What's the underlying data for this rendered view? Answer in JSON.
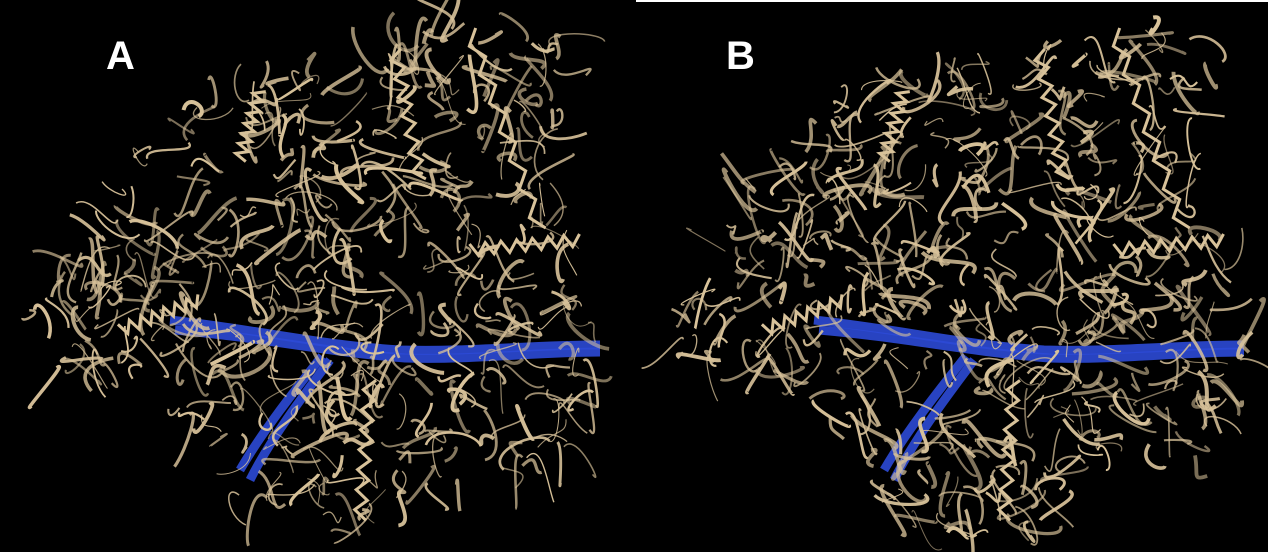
{
  "panels": [
    {
      "label": "A"
    },
    {
      "label": "B"
    }
  ],
  "colors": {
    "background": "#000000",
    "protein": "#d8c29a",
    "dna": "#2c4ad6"
  }
}
